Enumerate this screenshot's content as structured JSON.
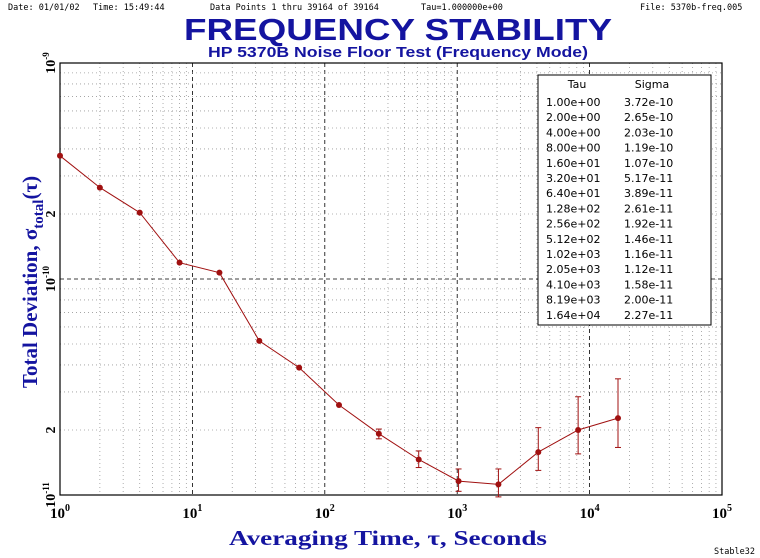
{
  "header": {
    "date": "Date: 01/01/02",
    "time": "Time: 15:49:44",
    "data_points": "Data Points 1 thru 39164 of 39164",
    "tau": "Tau=1.000000e+00",
    "file": "File: 5370b-freq.005"
  },
  "footer_tag": "Stable32",
  "colors": {
    "title": "#1414a0",
    "data": "#a01010",
    "frame": "#000000"
  },
  "chart_data": {
    "type": "line",
    "title": "FREQUENCY STABILITY",
    "subtitle": "HP 5370B Noise Floor Test (Frequency Mode)",
    "xlabel": "Averaging Time, τ, Seconds",
    "ylabel_main": "Total Deviation, σ",
    "ylabel_sub": "total",
    "ylabel_tail": "(τ)",
    "x_scale": "log",
    "y_scale": "log",
    "xlim": [
      1,
      100000
    ],
    "ylim": [
      1e-11,
      1e-09
    ],
    "x_ticks": [
      {
        "value": 1,
        "base": "10",
        "exp": "0"
      },
      {
        "value": 10,
        "base": "10",
        "exp": "1"
      },
      {
        "value": 100,
        "base": "10",
        "exp": "2"
      },
      {
        "value": 1000,
        "base": "10",
        "exp": "3"
      },
      {
        "value": 10000,
        "base": "10",
        "exp": "4"
      },
      {
        "value": 100000,
        "base": "10",
        "exp": "5"
      }
    ],
    "y_ticks": [
      {
        "value": 1e-09,
        "base": "10",
        "exp": "-9"
      },
      {
        "value": 2e-10,
        "base": "2",
        "exp": ""
      },
      {
        "value": 1e-10,
        "base": "10",
        "exp": "-10"
      },
      {
        "value": 2e-11,
        "base": "2",
        "exp": ""
      },
      {
        "value": 1e-11,
        "base": "10",
        "exp": "-11"
      }
    ],
    "grid": true,
    "series": [
      {
        "tau": [
          1,
          2,
          4,
          8,
          16,
          32,
          64,
          128,
          256,
          512,
          1024,
          2048,
          4096,
          8192,
          16384
        ],
        "sigma": [
          3.72e-10,
          2.65e-10,
          2.03e-10,
          1.19e-10,
          1.07e-10,
          5.17e-11,
          3.89e-11,
          2.61e-11,
          1.92e-11,
          1.46e-11,
          1.16e-11,
          1.12e-11,
          1.58e-11,
          2e-11,
          2.27e-11
        ],
        "err_low": [
          null,
          null,
          null,
          null,
          null,
          null,
          null,
          null,
          1.82e-11,
          1.34e-11,
          1.04e-11,
          9.8e-12,
          1.3e-11,
          1.55e-11,
          1.66e-11
        ],
        "err_high": [
          null,
          null,
          null,
          null,
          null,
          null,
          null,
          null,
          2.02e-11,
          1.6e-11,
          1.32e-11,
          1.32e-11,
          2.05e-11,
          2.85e-11,
          3.45e-11
        ]
      }
    ],
    "table": {
      "position": "top-right",
      "headers": [
        "Tau",
        "Sigma"
      ],
      "rows": [
        [
          "1.00e+00",
          "3.72e-10"
        ],
        [
          "2.00e+00",
          "2.65e-10"
        ],
        [
          "4.00e+00",
          "2.03e-10"
        ],
        [
          "8.00e+00",
          "1.19e-10"
        ],
        [
          "1.60e+01",
          "1.07e-10"
        ],
        [
          "3.20e+01",
          "5.17e-11"
        ],
        [
          "6.40e+01",
          "3.89e-11"
        ],
        [
          "1.28e+02",
          "2.61e-11"
        ],
        [
          "2.56e+02",
          "1.92e-11"
        ],
        [
          "5.12e+02",
          "1.46e-11"
        ],
        [
          "1.02e+03",
          "1.16e-11"
        ],
        [
          "2.05e+03",
          "1.12e-11"
        ],
        [
          "4.10e+03",
          "1.58e-11"
        ],
        [
          "8.19e+03",
          "2.00e-11"
        ],
        [
          "1.64e+04",
          "2.27e-11"
        ]
      ]
    }
  }
}
